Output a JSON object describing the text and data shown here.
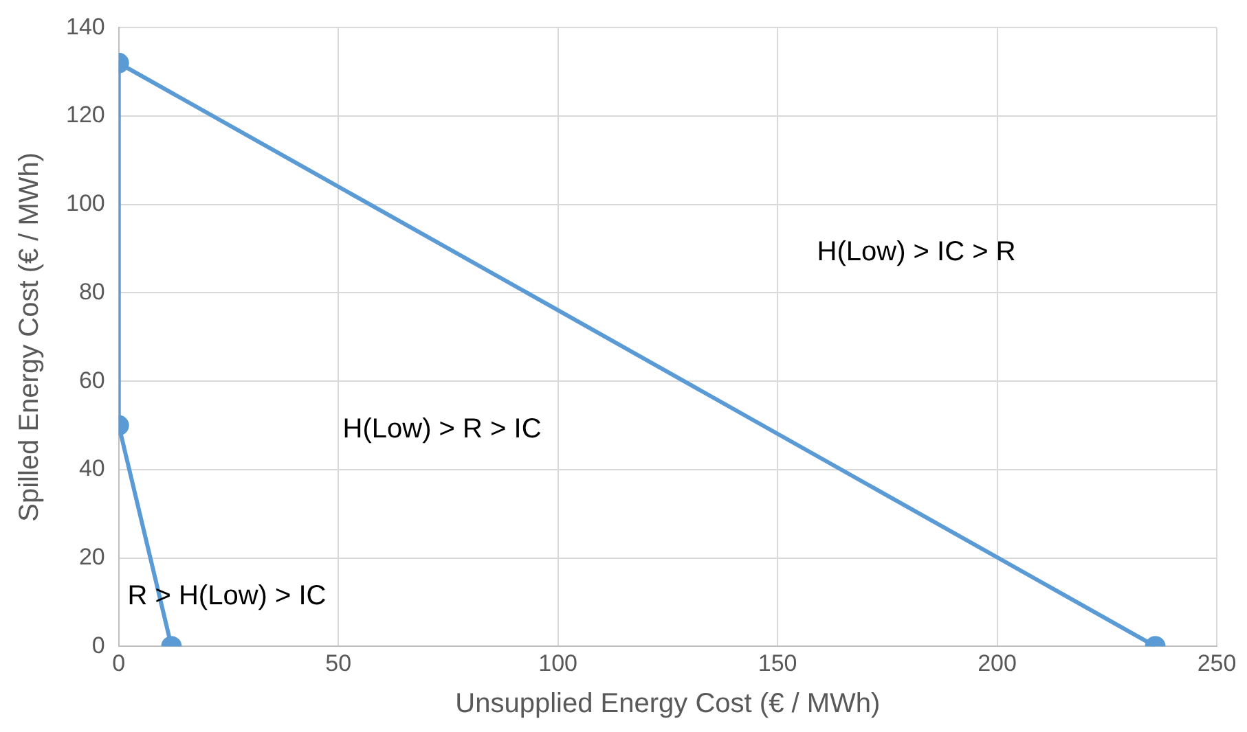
{
  "chart_data": {
    "type": "line",
    "xlabel": "Unsupplied Energy Cost (€ / MWh)",
    "ylabel": "Spilled Energy Cost (€ / MWh)",
    "series": [
      {
        "color": "#5b9bd5",
        "x": [
          236,
          0,
          0,
          12
        ],
        "values": [
          0,
          132,
          50,
          0
        ]
      }
    ],
    "xlim": [
      0,
      250
    ],
    "xticks": [
      0,
      50,
      100,
      150,
      200,
      250
    ],
    "ylim": [
      0,
      140
    ],
    "yticks": [
      0,
      20,
      40,
      60,
      80,
      100,
      120,
      140
    ],
    "grid": true,
    "legend": false,
    "marker": "circle",
    "line_style": "solid",
    "annotations": [
      "H(Low) > IC > R",
      "H(Low) > R > IC",
      "R > H(Low) > IC"
    ]
  }
}
